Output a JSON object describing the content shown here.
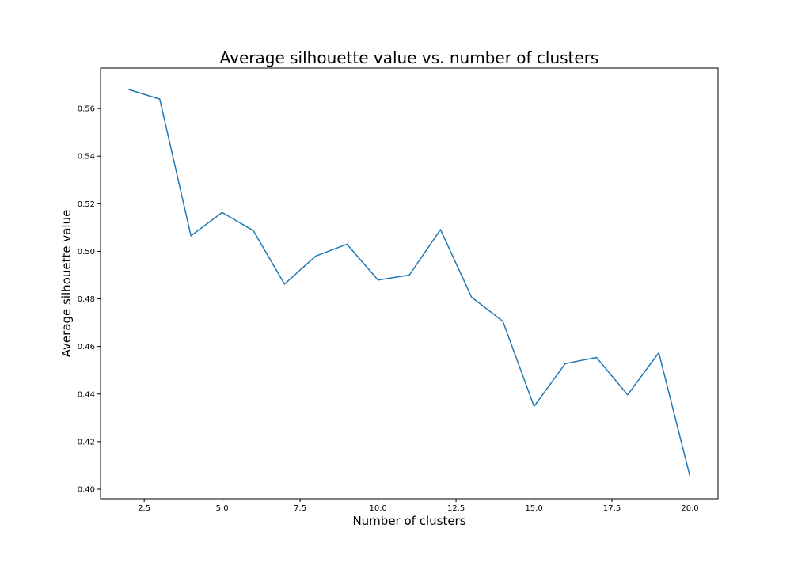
{
  "chart_data": {
    "type": "line",
    "title": "Average silhouette value vs. number of clusters",
    "xlabel": "Number of clusters",
    "ylabel": "Average silhouette value",
    "xlim": [
      1.1,
      20.9
    ],
    "ylim": [
      0.396,
      0.577
    ],
    "xticks": [
      2.5,
      5.0,
      7.5,
      10.0,
      12.5,
      15.0,
      17.5,
      20.0
    ],
    "xtick_labels": [
      "2.5",
      "5.0",
      "7.5",
      "10.0",
      "12.5",
      "15.0",
      "17.5",
      "20.0"
    ],
    "yticks": [
      0.4,
      0.42,
      0.44,
      0.46,
      0.48,
      0.5,
      0.52,
      0.54,
      0.56
    ],
    "ytick_labels": [
      "0.40",
      "0.42",
      "0.44",
      "0.46",
      "0.48",
      "0.50",
      "0.52",
      "0.54",
      "0.56"
    ],
    "grid": false,
    "series": [
      {
        "color": "#1f77b4",
        "x": [
          2,
          3,
          4,
          5,
          6,
          7,
          8,
          9,
          10,
          11,
          12,
          13,
          14,
          15,
          16,
          17,
          18,
          19,
          20
        ],
        "y": [
          0.568,
          0.564,
          0.5065,
          0.5163,
          0.5087,
          0.4862,
          0.498,
          0.503,
          0.4879,
          0.49,
          0.5091,
          0.4807,
          0.4706,
          0.4348,
          0.4528,
          0.4554,
          0.4397,
          0.4574,
          0.4055
        ]
      }
    ]
  }
}
